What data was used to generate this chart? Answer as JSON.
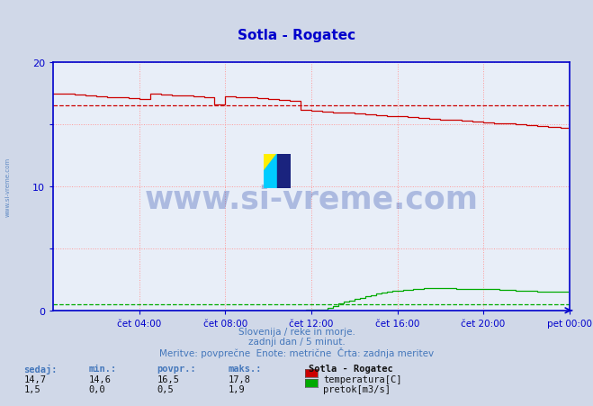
{
  "title": "Sotla - Rogatec",
  "title_color": "#0000cc",
  "bg_color": "#d0d8e8",
  "plot_bg_color": "#e8eef8",
  "grid_color": "#ff9999",
  "xlim": [
    0,
    288
  ],
  "ylim": [
    0,
    20
  ],
  "yticks": [
    0,
    5,
    10,
    15,
    20
  ],
  "ytick_labels": [
    "0",
    "",
    "10",
    "",
    "20"
  ],
  "xtick_positions": [
    48,
    96,
    144,
    192,
    240,
    288
  ],
  "xtick_labels": [
    "čet 04:00",
    "čet 08:00",
    "čet 12:00",
    "čet 16:00",
    "čet 20:00",
    "pet 00:00"
  ],
  "temp_color": "#cc0000",
  "flow_color": "#00aa00",
  "axis_color": "#0000cc",
  "tick_color": "#0000cc",
  "subtitle1": "Slovenija / reke in morje.",
  "subtitle2": "zadnji dan / 5 minut.",
  "subtitle3": "Meritve: povprečne  Enote: metrične  Črta: zadnja meritev",
  "subtitle_color": "#4477bb",
  "watermark": "www.si-vreme.com",
  "watermark_color": "#2244aa",
  "legend_title": "Sotla - Rogatec",
  "legend_items": [
    "temperatura[C]",
    "pretok[m3/s]"
  ],
  "legend_colors": [
    "#cc0000",
    "#00aa00"
  ],
  "table_headers": [
    "sedaj:",
    "min.:",
    "povpr.:",
    "maks.:"
  ],
  "table_temp": [
    "14,7",
    "14,6",
    "16,5",
    "17,8"
  ],
  "table_flow": [
    "1,5",
    "0,0",
    "0,5",
    "1,9"
  ],
  "temp_avg_val": 16.5,
  "temp_max_val": 17.8,
  "temp_min_val": 14.6,
  "flow_avg_val": 0.5,
  "flow_max_val": 1.9,
  "flow_min_val": 0.0
}
